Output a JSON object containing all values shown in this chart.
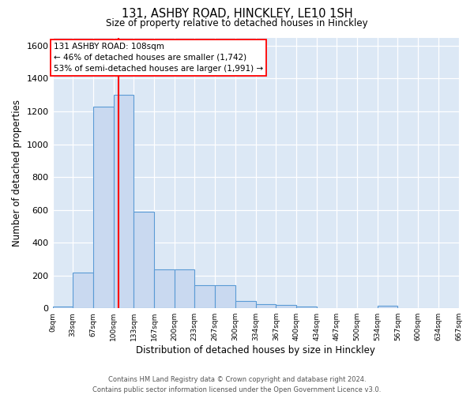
{
  "title_line1": "131, ASHBY ROAD, HINCKLEY, LE10 1SH",
  "title_line2": "Size of property relative to detached houses in Hinckley",
  "xlabel": "Distribution of detached houses by size in Hinckley",
  "ylabel": "Number of detached properties",
  "footer_line1": "Contains HM Land Registry data © Crown copyright and database right 2024.",
  "footer_line2": "Contains public sector information licensed under the Open Government Licence v3.0.",
  "annotation_line1": "131 ASHBY ROAD: 108sqm",
  "annotation_line2": "← 46% of detached houses are smaller (1,742)",
  "annotation_line3": "53% of semi-detached houses are larger (1,991) →",
  "bin_edges": [
    0,
    33,
    67,
    100,
    133,
    167,
    200,
    233,
    267,
    300,
    334,
    367,
    400,
    434,
    467,
    500,
    534,
    567,
    600,
    634,
    667
  ],
  "bar_heights": [
    10,
    220,
    1230,
    1300,
    590,
    235,
    235,
    140,
    140,
    45,
    25,
    20,
    10,
    0,
    0,
    0,
    15,
    0,
    0,
    0
  ],
  "bar_color": "#c9d9f0",
  "bar_edge_color": "#5b9bd5",
  "property_line_x": 108,
  "property_line_color": "red",
  "ylim_max": 1650,
  "xlim_min": 0,
  "xlim_max": 667,
  "background_color": "#dce8f5",
  "tick_labels": [
    "0sqm",
    "33sqm",
    "67sqm",
    "100sqm",
    "133sqm",
    "167sqm",
    "200sqm",
    "233sqm",
    "267sqm",
    "300sqm",
    "334sqm",
    "367sqm",
    "400sqm",
    "434sqm",
    "467sqm",
    "500sqm",
    "534sqm",
    "567sqm",
    "600sqm",
    "634sqm",
    "667sqm"
  ],
  "tick_positions": [
    0,
    33,
    67,
    100,
    133,
    167,
    200,
    233,
    267,
    300,
    334,
    367,
    400,
    434,
    467,
    500,
    534,
    567,
    600,
    634,
    667
  ],
  "yticks": [
    0,
    200,
    400,
    600,
    800,
    1000,
    1200,
    1400,
    1600
  ]
}
